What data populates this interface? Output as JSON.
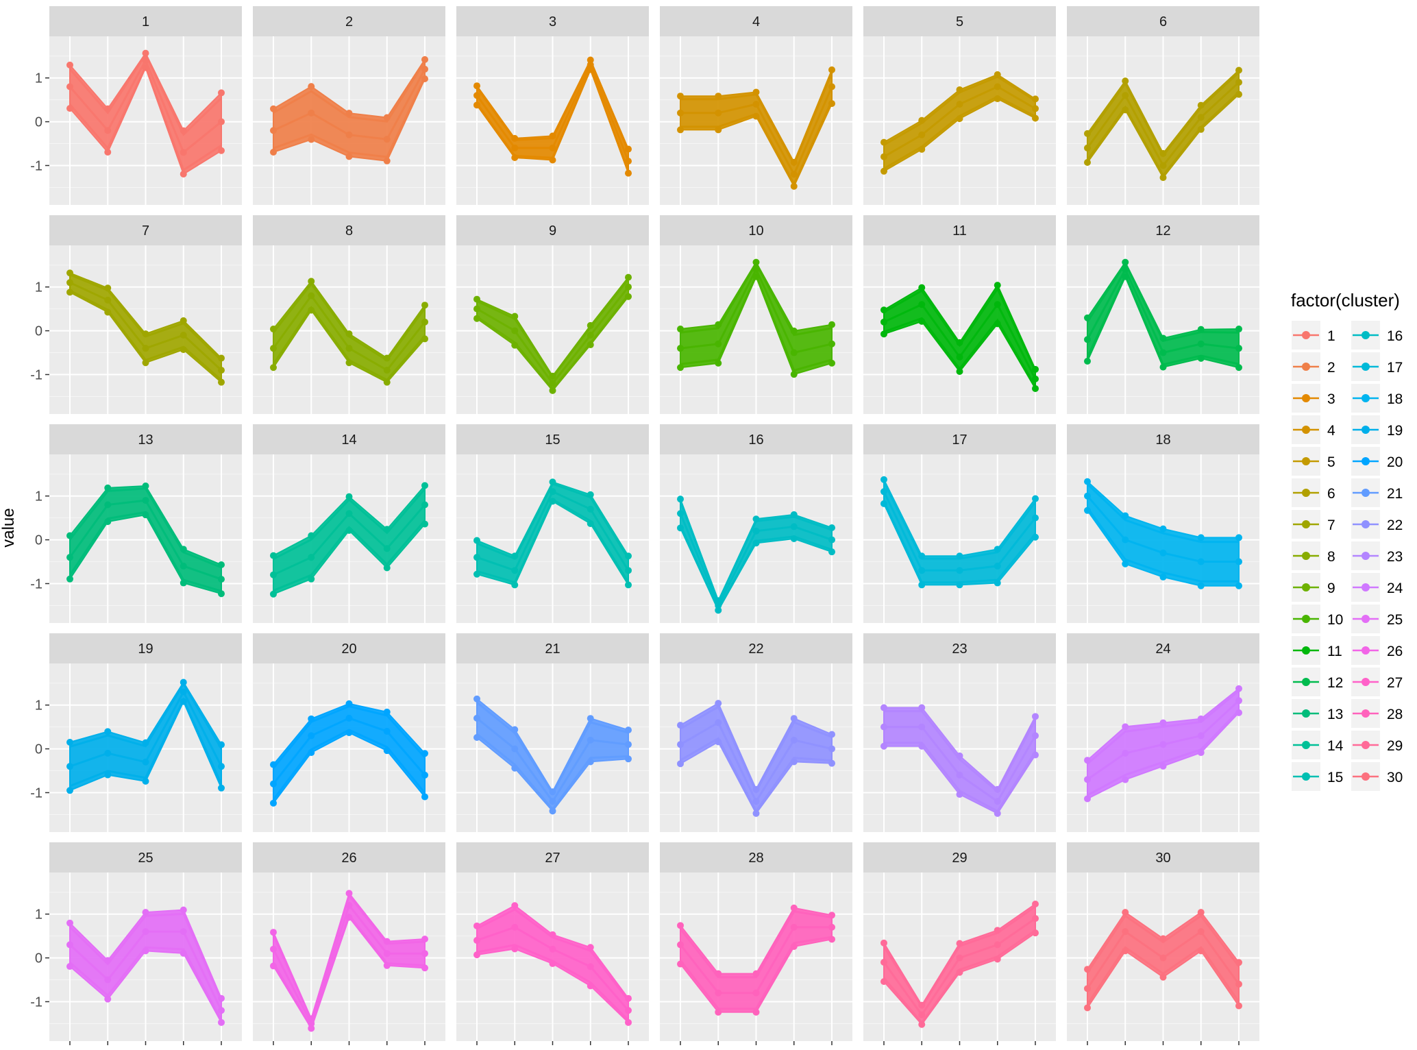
{
  "chart_data": {
    "type": "line",
    "ylabel": "value",
    "xlabel": "",
    "y_ticks": [
      "1",
      "0",
      "-1"
    ],
    "y_tick_values": [
      1,
      0,
      -1
    ],
    "ylim": [
      -1.9,
      1.95
    ],
    "x_points": 5,
    "grid": true,
    "legend": {
      "title": "factor(cluster)",
      "placement": "right",
      "columns": 2,
      "entries": [
        "1",
        "2",
        "3",
        "4",
        "5",
        "6",
        "7",
        "8",
        "9",
        "10",
        "11",
        "12",
        "13",
        "14",
        "15",
        "16",
        "17",
        "18",
        "19",
        "20",
        "21",
        "22",
        "23",
        "24",
        "25",
        "26",
        "27",
        "28",
        "29",
        "30"
      ]
    },
    "colors": [
      "#F8766D",
      "#EF7F49",
      "#E38900",
      "#D39200",
      "#C49A00",
      "#B2A000",
      "#9FA600",
      "#88AC00",
      "#6DB100",
      "#49B500",
      "#00B70C",
      "#00BB4E",
      "#00BC7A",
      "#00C097",
      "#00BFB2",
      "#00BCC4",
      "#00B9D8",
      "#00B4EF",
      "#00AFEA",
      "#00A5FF",
      "#619CFF",
      "#8F91FF",
      "#B385FF",
      "#CF78FF",
      "#E36EF6",
      "#F265E7",
      "#FF61C9",
      "#FF62BC",
      "#FF6A98",
      "#FC717F"
    ],
    "panels": [
      {
        "name": "1",
        "series": [
          {
            "values": [
              0.8,
              -0.2,
              1.4,
              -0.7,
              0.0
            ],
            "spread": [
              0.9,
              0.9,
              0.3,
              0.9,
              1.2
            ]
          }
        ]
      },
      {
        "name": "2",
        "series": [
          {
            "values": [
              -0.2,
              0.2,
              -0.3,
              -0.4,
              1.2
            ],
            "spread": [
              0.9,
              1.1,
              0.9,
              0.9,
              0.4
            ]
          }
        ]
      },
      {
        "name": "3",
        "series": [
          {
            "values": [
              0.6,
              -0.6,
              -0.6,
              1.3,
              -0.9
            ],
            "spread": [
              0.4,
              0.4,
              0.5,
              0.2,
              0.5
            ]
          }
        ]
      },
      {
        "name": "4",
        "series": [
          {
            "values": [
              0.2,
              0.2,
              0.4,
              -1.2,
              0.8
            ],
            "spread": [
              0.7,
              0.7,
              0.5,
              0.5,
              0.7
            ]
          }
        ]
      },
      {
        "name": "5",
        "series": [
          {
            "values": [
              -0.8,
              -0.3,
              0.4,
              0.8,
              0.3
            ],
            "spread": [
              0.6,
              0.6,
              0.6,
              0.5,
              0.4
            ]
          }
        ]
      },
      {
        "name": "6",
        "series": [
          {
            "values": [
              -0.6,
              0.6,
              -1.0,
              0.1,
              0.9
            ],
            "spread": [
              0.6,
              0.6,
              0.5,
              0.5,
              0.5
            ]
          }
        ]
      },
      {
        "name": "7",
        "series": [
          {
            "values": [
              1.1,
              0.7,
              -0.4,
              -0.1,
              -0.9
            ],
            "spread": [
              0.4,
              0.5,
              0.6,
              0.6,
              0.5
            ]
          }
        ]
      },
      {
        "name": "8",
        "series": [
          {
            "values": [
              -0.4,
              0.8,
              -0.4,
              -0.9,
              0.2
            ],
            "spread": [
              0.8,
              0.6,
              0.6,
              0.5,
              0.7
            ]
          }
        ]
      },
      {
        "name": "9",
        "series": [
          {
            "values": [
              0.5,
              0.0,
              -1.2,
              -0.1,
              1.0
            ],
            "spread": [
              0.4,
              0.6,
              0.3,
              0.4,
              0.4
            ]
          }
        ]
      },
      {
        "name": "10",
        "series": [
          {
            "values": [
              -0.4,
              -0.3,
              1.4,
              -0.5,
              -0.3
            ],
            "spread": [
              0.8,
              0.8,
              0.3,
              0.9,
              0.8
            ]
          }
        ]
      },
      {
        "name": "11",
        "series": [
          {
            "values": [
              0.2,
              0.6,
              -0.6,
              0.6,
              -1.1
            ],
            "spread": [
              0.5,
              0.7,
              0.6,
              0.8,
              0.4
            ]
          }
        ]
      },
      {
        "name": "12",
        "series": [
          {
            "values": [
              -0.2,
              1.4,
              -0.5,
              -0.3,
              -0.4
            ],
            "spread": [
              0.9,
              0.3,
              0.6,
              0.6,
              0.8
            ]
          }
        ]
      },
      {
        "name": "13",
        "series": [
          {
            "values": [
              -0.4,
              0.8,
              0.9,
              -0.6,
              -0.9
            ],
            "spread": [
              0.9,
              0.7,
              0.6,
              0.7,
              0.6
            ]
          }
        ]
      },
      {
        "name": "14",
        "series": [
          {
            "values": [
              -0.8,
              -0.4,
              0.6,
              -0.2,
              0.8
            ],
            "spread": [
              0.8,
              0.9,
              0.7,
              0.8,
              0.8
            ]
          }
        ]
      },
      {
        "name": "15",
        "series": [
          {
            "values": [
              -0.4,
              -0.7,
              1.1,
              0.7,
              -0.7
            ],
            "spread": [
              0.7,
              0.6,
              0.4,
              0.6,
              0.6
            ]
          }
        ]
      },
      {
        "name": "16",
        "series": [
          {
            "values": [
              0.6,
              -1.5,
              0.2,
              0.3,
              0.0
            ],
            "spread": [
              0.6,
              0.2,
              0.5,
              0.5,
              0.5
            ]
          }
        ]
      },
      {
        "name": "17",
        "series": [
          {
            "values": [
              1.1,
              -0.7,
              -0.7,
              -0.6,
              0.5
            ],
            "spread": [
              0.5,
              0.6,
              0.6,
              0.7,
              0.8
            ]
          }
        ]
      },
      {
        "name": "18",
        "series": [
          {
            "values": [
              1.0,
              0.0,
              -0.3,
              -0.5,
              -0.5
            ],
            "spread": [
              0.6,
              1.0,
              1.0,
              1.0,
              1.0
            ]
          }
        ]
      },
      {
        "name": "19",
        "series": [
          {
            "values": [
              -0.4,
              -0.1,
              -0.3,
              1.3,
              -0.4
            ],
            "spread": [
              1.0,
              0.9,
              0.8,
              0.4,
              0.9
            ]
          }
        ]
      },
      {
        "name": "20",
        "series": [
          {
            "values": [
              -0.8,
              0.3,
              0.7,
              0.4,
              -0.6
            ],
            "spread": [
              0.8,
              0.7,
              0.6,
              0.8,
              0.9
            ]
          }
        ]
      },
      {
        "name": "21",
        "series": [
          {
            "values": [
              0.7,
              0.0,
              -1.2,
              0.2,
              0.1
            ],
            "spread": [
              0.8,
              0.8,
              0.4,
              0.9,
              0.6
            ]
          }
        ]
      },
      {
        "name": "22",
        "series": [
          {
            "values": [
              0.1,
              0.6,
              -1.2,
              0.2,
              0.0
            ],
            "spread": [
              0.8,
              0.8,
              0.5,
              0.9,
              0.6
            ]
          }
        ]
      },
      {
        "name": "23",
        "series": [
          {
            "values": [
              0.5,
              0.5,
              -0.6,
              -1.2,
              0.3
            ],
            "spread": [
              0.8,
              0.8,
              0.8,
              0.5,
              0.8
            ]
          }
        ]
      },
      {
        "name": "24",
        "series": [
          {
            "values": [
              -0.7,
              -0.1,
              0.1,
              0.3,
              1.1
            ],
            "spread": [
              0.8,
              1.1,
              0.9,
              0.7,
              0.5
            ]
          }
        ]
      },
      {
        "name": "25",
        "series": [
          {
            "values": [
              0.3,
              -0.5,
              0.6,
              0.6,
              -1.2
            ],
            "spread": [
              0.9,
              0.8,
              0.8,
              0.9,
              0.5
            ]
          }
        ]
      },
      {
        "name": "26",
        "series": [
          {
            "values": [
              0.2,
              -1.5,
              1.2,
              0.1,
              0.1
            ],
            "spread": [
              0.7,
              0.2,
              0.5,
              0.5,
              0.6
            ]
          }
        ]
      },
      {
        "name": "27",
        "series": [
          {
            "values": [
              0.4,
              0.7,
              0.2,
              -0.2,
              -1.2
            ],
            "spread": [
              0.6,
              0.9,
              0.6,
              0.8,
              0.5
            ]
          }
        ]
      },
      {
        "name": "28",
        "series": [
          {
            "values": [
              0.3,
              -0.8,
              -0.8,
              0.7,
              0.7
            ],
            "spread": [
              0.8,
              0.8,
              0.8,
              0.8,
              0.5
            ]
          }
        ]
      },
      {
        "name": "29",
        "series": [
          {
            "values": [
              -0.1,
              -1.3,
              0.0,
              0.3,
              0.9
            ],
            "spread": [
              0.8,
              0.4,
              0.6,
              0.6,
              0.6
            ]
          }
        ]
      },
      {
        "name": "30",
        "series": [
          {
            "values": [
              -0.7,
              0.6,
              0.0,
              0.6,
              -0.6
            ],
            "spread": [
              0.8,
              0.8,
              0.8,
              0.8,
              0.9
            ]
          }
        ]
      }
    ]
  }
}
